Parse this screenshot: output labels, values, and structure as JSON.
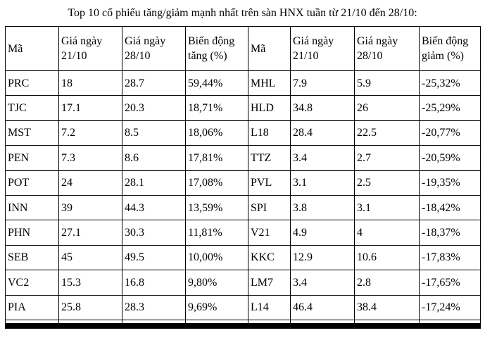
{
  "title": "Top 10 cổ phiếu tăng/giảm mạnh nhất trên sàn HNX tuần từ 21/10 đến 28/10:",
  "table": {
    "headers": [
      "Mã",
      "Giá ngày 21/10",
      "Giá ngày 28/10",
      "Biến động tăng (%)",
      "Mã",
      "Giá ngày 21/10",
      "Giá ngày 28/10",
      "Biến động giảm (%)"
    ],
    "rows": [
      [
        "PRC",
        "18",
        "28.7",
        "59,44%",
        "MHL",
        "7.9",
        "5.9",
        "-25,32%"
      ],
      [
        "TJC",
        "17.1",
        "20.3",
        "18,71%",
        "HLD",
        "34.8",
        "26",
        "-25,29%"
      ],
      [
        "MST",
        "7.2",
        "8.5",
        "18,06%",
        "L18",
        "28.4",
        "22.5",
        "-20,77%"
      ],
      [
        "PEN",
        "7.3",
        "8.6",
        "17,81%",
        "TTZ",
        "3.4",
        "2.7",
        "-20,59%"
      ],
      [
        "POT",
        "24",
        "28.1",
        "17,08%",
        "PVL",
        "3.1",
        "2.5",
        "-19,35%"
      ],
      [
        "INN",
        "39",
        "44.3",
        "13,59%",
        "SPI",
        "3.8",
        "3.1",
        "-18,42%"
      ],
      [
        "PHN",
        "27.1",
        "30.3",
        "11,81%",
        "V21",
        "4.9",
        "4",
        "-18,37%"
      ],
      [
        "SEB",
        "45",
        "49.5",
        "10,00%",
        "KKC",
        "12.9",
        "10.6",
        "-17,83%"
      ],
      [
        "VC2",
        "15.3",
        "16.8",
        "9,80%",
        "LM7",
        "3.4",
        "2.8",
        "-17,65%"
      ],
      [
        "PIA",
        "25.8",
        "28.3",
        "9,69%",
        "L14",
        "46.4",
        "38.4",
        "-17,24%"
      ]
    ]
  },
  "colors": {
    "text": "#000000",
    "background": "#ffffff",
    "border": "#000000",
    "bottom_bar": "#000000"
  }
}
